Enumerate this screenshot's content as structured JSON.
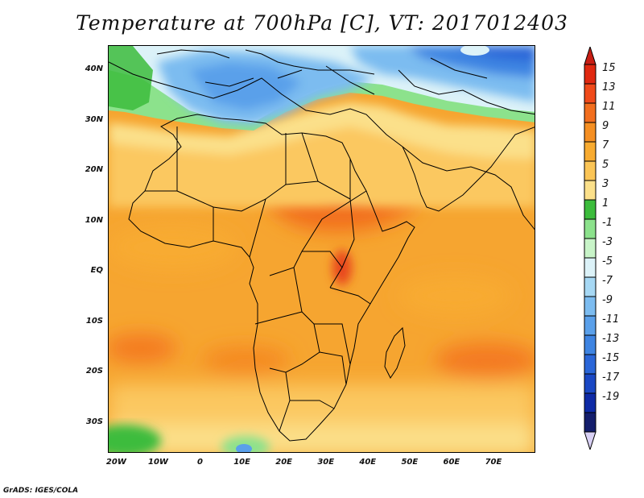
{
  "title": "Temperature at 700hPa [C], VT: 2017012403",
  "credit": "GrADS: IGES/COLA",
  "map": {
    "lat_range": [
      -36,
      45
    ],
    "lon_range": [
      -22,
      80
    ],
    "y_ticks": [
      {
        "label": "40N",
        "lat": 40
      },
      {
        "label": "30N",
        "lat": 30
      },
      {
        "label": "20N",
        "lat": 20
      },
      {
        "label": "10N",
        "lat": 10
      },
      {
        "label": "EQ",
        "lat": 0
      },
      {
        "label": "10S",
        "lat": -10
      },
      {
        "label": "20S",
        "lat": -20
      },
      {
        "label": "30S",
        "lat": -30
      }
    ],
    "x_ticks": [
      {
        "label": "20W",
        "lon": -20
      },
      {
        "label": "10W",
        "lon": -10
      },
      {
        "label": "0",
        "lon": 0
      },
      {
        "label": "10E",
        "lon": 10
      },
      {
        "label": "20E",
        "lon": 20
      },
      {
        "label": "30E",
        "lon": 30
      },
      {
        "label": "40E",
        "lon": 40
      },
      {
        "label": "50E",
        "lon": 50
      },
      {
        "label": "60E",
        "lon": 60
      },
      {
        "label": "70E",
        "lon": 70
      }
    ]
  },
  "colorbar": {
    "labels": [
      "15",
      "13",
      "11",
      "9",
      "7",
      "5",
      "3",
      "1",
      "-1",
      "-3",
      "-5",
      "-7",
      "-9",
      "-11",
      "-13",
      "-15",
      "-17",
      "-19"
    ],
    "colors_top_to_bottom": [
      "#e02810",
      "#f04a1a",
      "#f26e1e",
      "#f58f22",
      "#f8ab30",
      "#fbc556",
      "#fbe08a",
      "#3cbc3c",
      "#8ce28c",
      "#c8f4c8",
      "#dcf2f8",
      "#a6d8f4",
      "#7cbcf0",
      "#5aa0ea",
      "#3e84e2",
      "#2a66d8",
      "#1a48c4",
      "#0e2aa6",
      "#141e6c"
    ],
    "top_arrow_color": "#c81e14",
    "bottom_arrow_color": "#d8d0f4"
  }
}
